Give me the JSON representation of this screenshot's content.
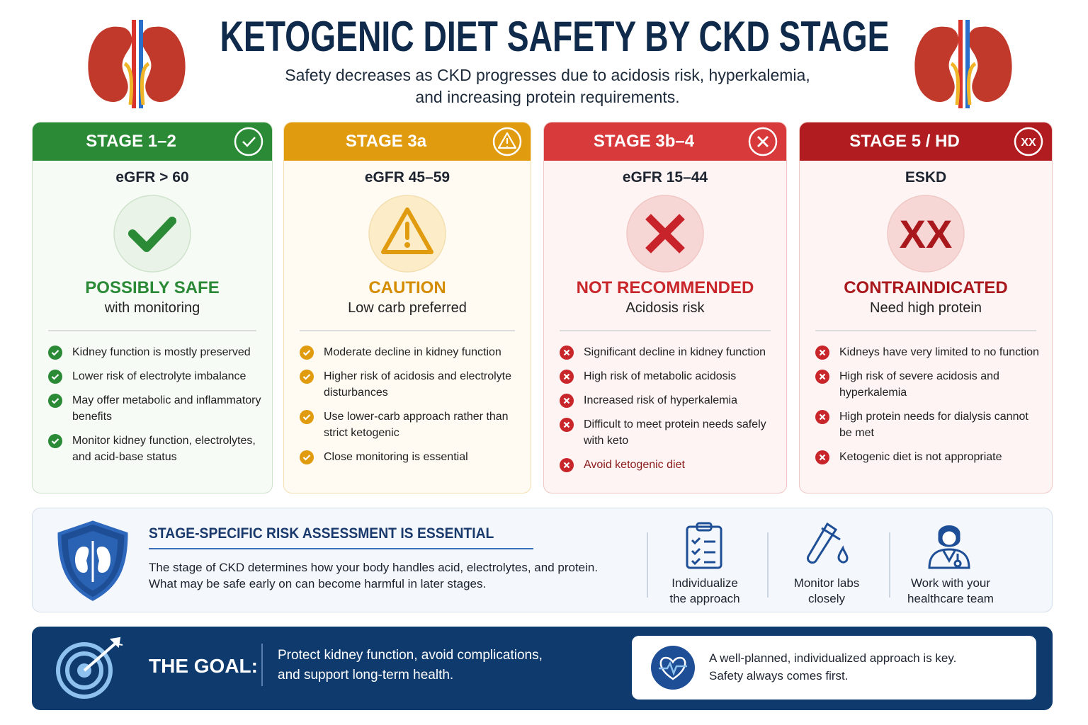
{
  "header": {
    "title": "KETOGENIC DIET SAFETY BY CKD STAGE",
    "subtitle": [
      "Safety decreases as CKD progresses due to acidosis risk, hyperkalemia,",
      "and increasing protein requirements."
    ]
  },
  "stages": [
    {
      "stage": "STAGE 1–2",
      "egfr": "eGFR > 60",
      "verdict": "POSSIBLY SAFE",
      "note": "with monitoring",
      "points": [
        "Kidney function is mostly preserved",
        "Lower risk of electrolyte imbalance",
        "May offer metabolic and inflammatory benefits",
        "Monitor kidney function, electrolytes, and acid-base status"
      ]
    },
    {
      "stage": "STAGE 3a",
      "egfr": "eGFR 45–59",
      "verdict": "CAUTION",
      "note": "Low carb preferred",
      "points": [
        "Moderate decline in kidney function",
        "Higher risk of acidosis and electrolyte disturbances",
        "Use lower-carb approach rather than strict ketogenic",
        "Close monitoring is essential"
      ]
    },
    {
      "stage": "STAGE 3b–4",
      "egfr": "eGFR 15–44",
      "verdict": "NOT RECOMMENDED",
      "note": "Acidosis risk",
      "points": [
        "Significant decline in kidney function",
        "High risk of metabolic acidosis",
        "Increased risk of hyperkalemia",
        "Difficult to meet protein needs safely with keto",
        "Avoid ketogenic diet"
      ]
    },
    {
      "stage": "STAGE 5 / HD",
      "egfr": "ESKD",
      "verdict": "CONTRAINDICATED",
      "note": "Need high protein",
      "symbol": "XX",
      "points": [
        "Kidneys have very limited to no function",
        "High risk of severe acidosis and hyperkalemia",
        "High protein needs for dialysis cannot be met",
        "Ketogenic diet is not appropriate"
      ]
    }
  ],
  "risk": {
    "title": "STAGE-SPECIFIC RISK ASSESSMENT IS ESSENTIAL",
    "body": [
      "The stage of CKD determines how your body handles acid, electrolytes, and protein.",
      "What may be safe early on can become harmful in later stages."
    ],
    "actions": [
      [
        "Individualize",
        "the approach"
      ],
      [
        "Monitor labs",
        "closely"
      ],
      [
        "Work with your",
        "healthcare team"
      ]
    ]
  },
  "goal": {
    "label": "THE GOAL:",
    "text": [
      "Protect kidney function, avoid complications,",
      "and support long-term health."
    ],
    "note": [
      "A well-planned, individualized approach is key.",
      "Safety always comes first."
    ]
  }
}
